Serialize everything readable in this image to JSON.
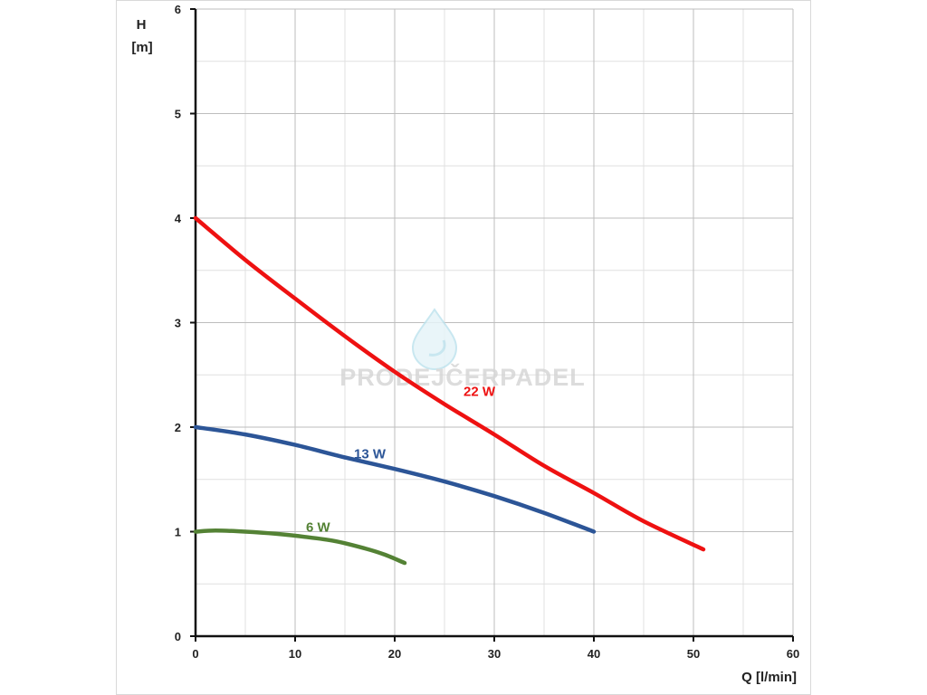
{
  "chart_data": {
    "type": "line",
    "title": "",
    "xlabel": "Q [l/min]",
    "ylabel_line1": "H",
    "ylabel_line2": "[m]",
    "xlim": [
      0,
      60
    ],
    "ylim": [
      0,
      6
    ],
    "x_ticks": [
      0,
      10,
      20,
      30,
      40,
      50,
      60
    ],
    "y_ticks": [
      0,
      1,
      2,
      3,
      4,
      5,
      6
    ],
    "grid": true,
    "grid_minor_x_step": 5,
    "grid_minor_y_step": 0.5,
    "series": [
      {
        "name": "22 W",
        "color": "#ee1111",
        "label_at": [
          28.5,
          2.3
        ],
        "points": [
          [
            0,
            4.0
          ],
          [
            5,
            3.6
          ],
          [
            10,
            3.23
          ],
          [
            15,
            2.87
          ],
          [
            20,
            2.53
          ],
          [
            25,
            2.22
          ],
          [
            30,
            1.93
          ],
          [
            35,
            1.63
          ],
          [
            40,
            1.37
          ],
          [
            45,
            1.1
          ],
          [
            51,
            0.83
          ]
        ]
      },
      {
        "name": "13 W",
        "color": "#2c5597",
        "label_at": [
          17.5,
          1.7
        ],
        "points": [
          [
            0,
            2.0
          ],
          [
            5,
            1.93
          ],
          [
            10,
            1.83
          ],
          [
            15,
            1.71
          ],
          [
            20,
            1.6
          ],
          [
            25,
            1.48
          ],
          [
            30,
            1.34
          ],
          [
            35,
            1.18
          ],
          [
            40,
            1.0
          ]
        ]
      },
      {
        "name": "6 W",
        "color": "#548235",
        "label_at": [
          12.3,
          1.0
        ],
        "points": [
          [
            0,
            1.0
          ],
          [
            2,
            1.01
          ],
          [
            5,
            1.0
          ],
          [
            8,
            0.98
          ],
          [
            11,
            0.95
          ],
          [
            14,
            0.91
          ],
          [
            17,
            0.84
          ],
          [
            19,
            0.78
          ],
          [
            21,
            0.7
          ]
        ]
      }
    ]
  },
  "watermark": {
    "text": "PRODEJČERPADEL",
    "color": "#d6d6d6",
    "drop_color": "#bfe3ee"
  }
}
